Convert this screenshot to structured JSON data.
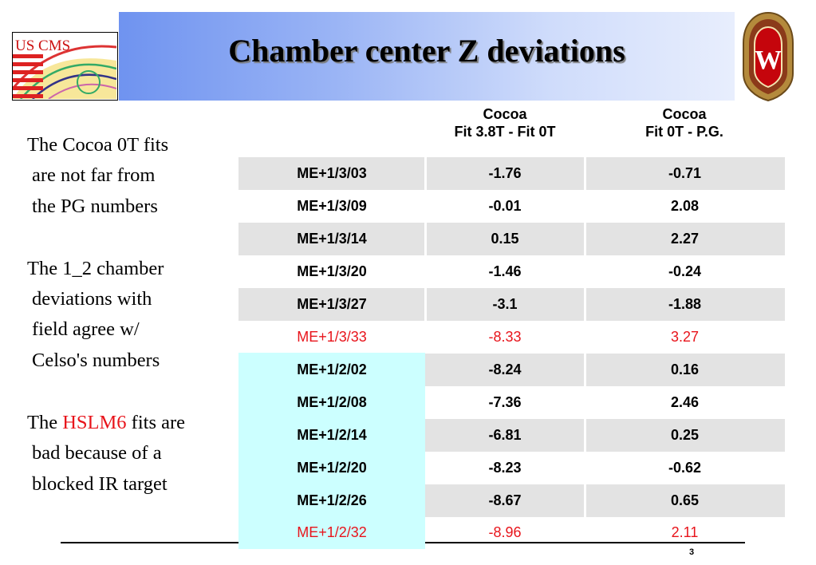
{
  "title": "Chamber center Z deviations",
  "logo_left": {
    "text": "US CMS"
  },
  "logo_right": {
    "letter": "W"
  },
  "sidebar": {
    "para1": [
      "The Cocoa 0T fits",
      "are not far from",
      "the PG numbers"
    ],
    "para2": [
      "The 1_2 chamber",
      "deviations with",
      "field agree w/",
      "Celso's numbers"
    ],
    "para3": {
      "prefix": "The ",
      "highlight": "HSLM6",
      "suffix": " fits are",
      "lines": [
        "bad because of a",
        "blocked IR target"
      ]
    }
  },
  "table": {
    "col2_header": [
      "Cocoa",
      "Fit 3.8T - Fit 0T"
    ],
    "col3_header": [
      "Cocoa",
      "Fit 0T - P.G."
    ],
    "rows": [
      {
        "chamber": "ME+1/3/03",
        "fit_diff": "-1.76",
        "pg_diff": "-0.71"
      },
      {
        "chamber": "ME+1/3/09",
        "fit_diff": "-0.01",
        "pg_diff": "2.08"
      },
      {
        "chamber": "ME+1/3/14",
        "fit_diff": "0.15",
        "pg_diff": "2.27"
      },
      {
        "chamber": "ME+1/3/20",
        "fit_diff": "-1.46",
        "pg_diff": "-0.24"
      },
      {
        "chamber": "ME+1/3/27",
        "fit_diff": "-3.1",
        "pg_diff": "-1.88"
      },
      {
        "chamber": "ME+1/3/33",
        "fit_diff": "-8.33",
        "pg_diff": "3.27"
      },
      {
        "chamber": "ME+1/2/02",
        "fit_diff": "-8.24",
        "pg_diff": "0.16"
      },
      {
        "chamber": "ME+1/2/08",
        "fit_diff": "-7.36",
        "pg_diff": "2.46"
      },
      {
        "chamber": "ME+1/2/14",
        "fit_diff": "-6.81",
        "pg_diff": "0.25"
      },
      {
        "chamber": "ME+1/2/20",
        "fit_diff": "-8.23",
        "pg_diff": "-0.62"
      },
      {
        "chamber": "ME+1/2/26",
        "fit_diff": "-8.67",
        "pg_diff": "0.65"
      },
      {
        "chamber": "ME+1/2/32",
        "fit_diff": "-8.96",
        "pg_diff": "2.11"
      }
    ]
  },
  "colors": {
    "accent_red": "#e8141b",
    "row_shade": "#e3e3e3",
    "highlight_cyan": "#ccffff",
    "title_band": "#6f93f0"
  },
  "page_number": "3"
}
